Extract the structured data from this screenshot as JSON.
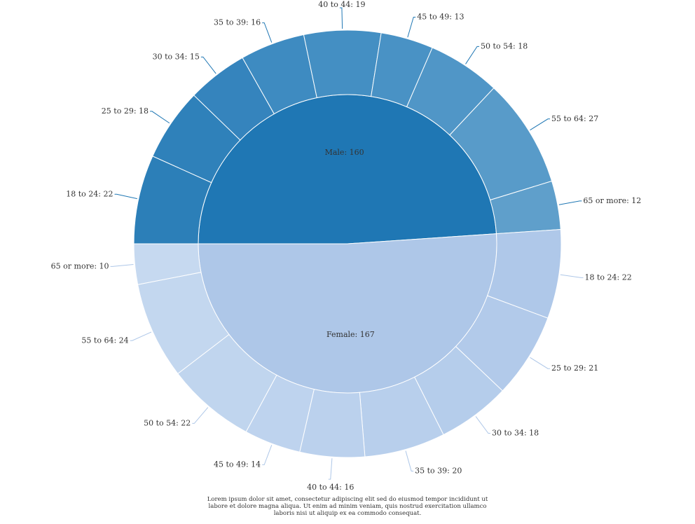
{
  "chart_data": {
    "type": "sunburst",
    "inner_ring": [
      {
        "label": "Male",
        "value": 160,
        "color": "#1f77b4"
      },
      {
        "label": "Female",
        "value": 167,
        "color": "#aec7e8"
      }
    ],
    "outer_ring": [
      {
        "parent": "Male",
        "segments": [
          {
            "label": "18 to 24",
            "value": 22,
            "color": "#2c7fb8"
          },
          {
            "label": "25 to 29",
            "value": 18,
            "color": "#2f81ba"
          },
          {
            "label": "30 to 34",
            "value": 15,
            "color": "#3584bd"
          },
          {
            "label": "35 to 39",
            "value": 16,
            "color": "#3e8bc1"
          },
          {
            "label": "40 to 44",
            "value": 19,
            "color": "#448fc3"
          },
          {
            "label": "45 to 49",
            "value": 13,
            "color": "#4992c5"
          },
          {
            "label": "50 to 54",
            "value": 18,
            "color": "#5096c7"
          },
          {
            "label": "55 to 64",
            "value": 27,
            "color": "#589bc9"
          },
          {
            "label": "65 or more",
            "value": 12,
            "color": "#5f9fcb"
          }
        ]
      },
      {
        "parent": "Female",
        "segments": [
          {
            "label": "18 to 24",
            "value": 22,
            "color": "#afc8e9"
          },
          {
            "label": "25 to 29",
            "value": 21,
            "color": "#b2caea"
          },
          {
            "label": "30 to 34",
            "value": 18,
            "color": "#b5cdeb"
          },
          {
            "label": "35 to 39",
            "value": 20,
            "color": "#b8cfec"
          },
          {
            "label": "40 to 44",
            "value": 16,
            "color": "#bbd1ed"
          },
          {
            "label": "45 to 49",
            "value": 14,
            "color": "#bed3ee"
          },
          {
            "label": "50 to 54",
            "value": 22,
            "color": "#c0d5ee"
          },
          {
            "label": "55 to 64",
            "value": 24,
            "color": "#c3d7ef"
          },
          {
            "label": "65 or more",
            "value": 10,
            "color": "#c6d9f0"
          }
        ]
      }
    ],
    "start_angle_deg": 180,
    "direction": "clockwise",
    "label_separator": ": ",
    "caption": "Lorem ipsum dolor sit amet, consectetur adipiscing elit sed do eiusmod tempor incididunt ut labore et dolore magna aliqua. Ut enim ad minim veniam, quis nostrud exercitation ullamco laboris nisi ut aliquip ex ea commodo consequat."
  }
}
